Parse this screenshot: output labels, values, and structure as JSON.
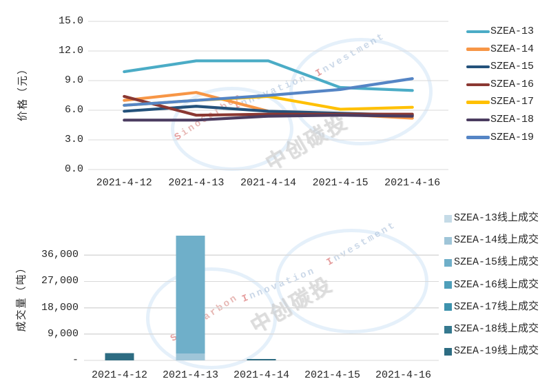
{
  "watermark": {
    "brand": "SinoCarbon",
    "word1": "Innovation",
    "word2": "Investment",
    "cn": "中创碳投"
  },
  "chart_data": [
    {
      "id": "price",
      "type": "line",
      "title": "",
      "ylabel": "价格（元）",
      "xlabel": "",
      "ymax": 15,
      "grid": true,
      "legend_position": "right",
      "yticks": [
        {
          "label": "0.0",
          "value": 0
        },
        {
          "label": "3.0",
          "value": 3
        },
        {
          "label": "6.0",
          "value": 6
        },
        {
          "label": "9.0",
          "value": 9
        },
        {
          "label": "12.0",
          "value": 12
        },
        {
          "label": "15.0",
          "value": 15
        }
      ],
      "categories": [
        "2021-4-12",
        "2021-4-13",
        "2021-4-14",
        "2021-4-15",
        "2021-4-16"
      ],
      "series": [
        {
          "name": "SZEA-13",
          "color": "#4BACC6",
          "values": [
            9.9,
            11.0,
            11.0,
            8.3,
            8.0
          ]
        },
        {
          "name": "SZEA-14",
          "color": "#F79646",
          "values": [
            7.0,
            7.8,
            5.9,
            5.6,
            5.2
          ]
        },
        {
          "name": "SZEA-15",
          "color": "#24527B",
          "values": [
            5.9,
            6.4,
            5.9,
            5.7,
            5.5
          ]
        },
        {
          "name": "SZEA-16",
          "color": "#8B3832",
          "values": [
            7.4,
            5.5,
            5.6,
            5.6,
            5.6
          ]
        },
        {
          "name": "SZEA-17",
          "color": "#FFC000",
          "values": [
            6.5,
            7.0,
            7.4,
            6.1,
            6.3
          ]
        },
        {
          "name": "SZEA-18",
          "color": "#4B3C60",
          "values": [
            5.0,
            5.0,
            5.4,
            5.5,
            5.4
          ]
        },
        {
          "name": "SZEA-19",
          "color": "#5585C5",
          "values": [
            6.5,
            7.0,
            7.5,
            8.1,
            9.2
          ]
        }
      ]
    },
    {
      "id": "volume",
      "type": "stacked-bar",
      "title": "",
      "ylabel": "成交量（吨）",
      "xlabel": "",
      "ymax": 45000,
      "grid": true,
      "legend_position": "right",
      "yticks": [
        {
          "label": "-",
          "value": 0
        },
        {
          "label": "9,000",
          "value": 9000
        },
        {
          "label": "18,000",
          "value": 18000
        },
        {
          "label": "27,000",
          "value": 27000
        },
        {
          "label": "36,000",
          "value": 36000
        }
      ],
      "categories": [
        "2021-4-12",
        "2021-4-13",
        "2021-4-14",
        "2021-4-15",
        "2021-4-16"
      ],
      "series": [
        {
          "name": "SZEA-13线上成交",
          "color": "#C5DBE7",
          "values": [
            0,
            0,
            0,
            0,
            0
          ]
        },
        {
          "name": "SZEA-14线上成交",
          "color": "#9FC5D8",
          "values": [
            0,
            2300,
            0,
            0,
            0
          ]
        },
        {
          "name": "SZEA-15线上成交",
          "color": "#6FAFC9",
          "values": [
            0,
            40400,
            0,
            0,
            0
          ]
        },
        {
          "name": "SZEA-16线上成交",
          "color": "#4F9FBA",
          "values": [
            0,
            0,
            0,
            0,
            0
          ]
        },
        {
          "name": "SZEA-17线上成交",
          "color": "#3D92AD",
          "values": [
            0,
            0,
            0,
            0,
            0
          ]
        },
        {
          "name": "SZEA-18线上成交",
          "color": "#35798F",
          "values": [
            0,
            0,
            0,
            0,
            0
          ]
        },
        {
          "name": "SZEA-19线上成交",
          "color": "#2D6C82",
          "values": [
            2500,
            0,
            500,
            0,
            0
          ]
        }
      ]
    }
  ]
}
